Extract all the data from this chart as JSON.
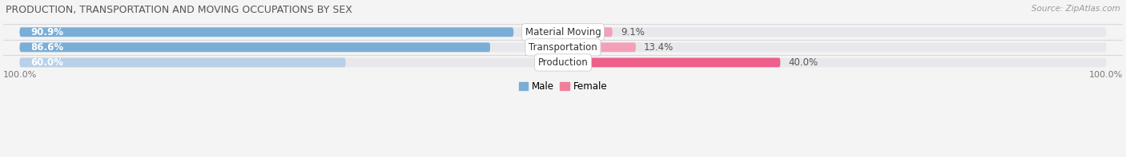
{
  "title": "PRODUCTION, TRANSPORTATION AND MOVING OCCUPATIONS BY SEX",
  "source": "Source: ZipAtlas.com",
  "categories": [
    "Material Moving",
    "Transportation",
    "Production"
  ],
  "male_values": [
    90.9,
    86.6,
    60.0
  ],
  "female_values": [
    9.1,
    13.4,
    40.0
  ],
  "male_colors": [
    "#7aaed6",
    "#7aaed6",
    "#b8d0e8"
  ],
  "female_colors": [
    "#f4a0b8",
    "#f4a0b8",
    "#ee5f8a"
  ],
  "bar_bg_color": "#e8e8ec",
  "bg_color": "#f4f4f4",
  "separator_color": "#d8d8de",
  "title_color": "#555555",
  "source_color": "#999999",
  "percent_label_male_color": "#ffffff",
  "percent_label_female_color": "#666666",
  "axis_label": "100.0%",
  "legend_male": "Male",
  "legend_female": "Female",
  "legend_male_color": "#7aaed6",
  "legend_female_color": "#f08098"
}
